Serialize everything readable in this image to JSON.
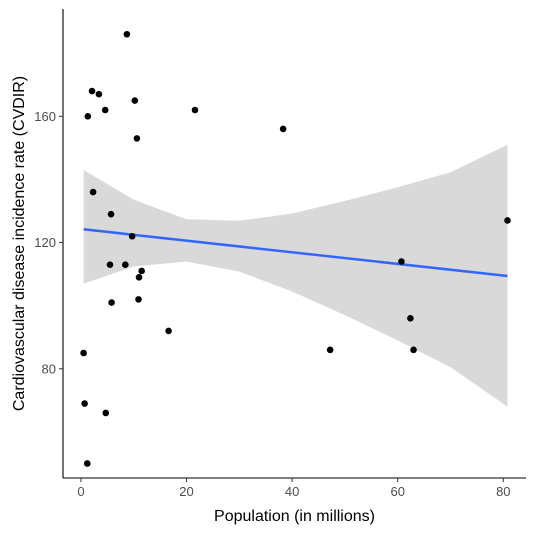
{
  "chart_data": {
    "type": "scatter",
    "title": "",
    "xlabel": "Population (in millions)",
    "ylabel": "Cardiovascular disease incidence rate (CVDIR)",
    "xlim": [
      -3.4,
      84.3
    ],
    "ylim": [
      45.4,
      194.0
    ],
    "xticks": [
      0,
      20,
      40,
      60,
      80
    ],
    "yticks": [
      80,
      120,
      160
    ],
    "grid": false,
    "legend": "none",
    "points": [
      {
        "x": 0.5,
        "y": 85
      },
      {
        "x": 0.7,
        "y": 69
      },
      {
        "x": 1.2,
        "y": 50
      },
      {
        "x": 1.3,
        "y": 160
      },
      {
        "x": 2.1,
        "y": 168
      },
      {
        "x": 2.3,
        "y": 136
      },
      {
        "x": 3.4,
        "y": 167
      },
      {
        "x": 4.6,
        "y": 162
      },
      {
        "x": 4.7,
        "y": 66
      },
      {
        "x": 5.5,
        "y": 113
      },
      {
        "x": 5.7,
        "y": 129
      },
      {
        "x": 5.8,
        "y": 101
      },
      {
        "x": 8.4,
        "y": 113
      },
      {
        "x": 8.7,
        "y": 186
      },
      {
        "x": 9.7,
        "y": 122
      },
      {
        "x": 10.2,
        "y": 165
      },
      {
        "x": 10.6,
        "y": 153
      },
      {
        "x": 10.9,
        "y": 102
      },
      {
        "x": 11.0,
        "y": 109
      },
      {
        "x": 11.5,
        "y": 111
      },
      {
        "x": 16.6,
        "y": 92
      },
      {
        "x": 21.6,
        "y": 162
      },
      {
        "x": 38.3,
        "y": 156
      },
      {
        "x": 47.2,
        "y": 86
      },
      {
        "x": 60.7,
        "y": 114
      },
      {
        "x": 62.4,
        "y": 96
      },
      {
        "x": 63.0,
        "y": 86
      },
      {
        "x": 80.8,
        "y": 127
      }
    ],
    "smooth": {
      "method": "linear",
      "x": [
        0.5,
        10,
        20,
        30,
        40,
        50,
        60,
        70,
        80.8
      ],
      "fit": [
        124.2,
        122.5,
        120.6,
        118.8,
        117.0,
        115.1,
        113.3,
        111.4,
        109.4
      ],
      "lower": [
        107.0,
        112.4,
        114.0,
        110.8,
        104.5,
        97.0,
        89.0,
        80.5,
        68.0
      ],
      "upper": [
        143.0,
        133.6,
        127.4,
        126.9,
        129.2,
        133.2,
        137.5,
        142.3,
        151.0
      ]
    },
    "colors": {
      "points": "#000000",
      "line": "#3366ff",
      "band": "#d9d9d9",
      "axis": "#000000",
      "tick_text": "#4d4d4d"
    }
  }
}
